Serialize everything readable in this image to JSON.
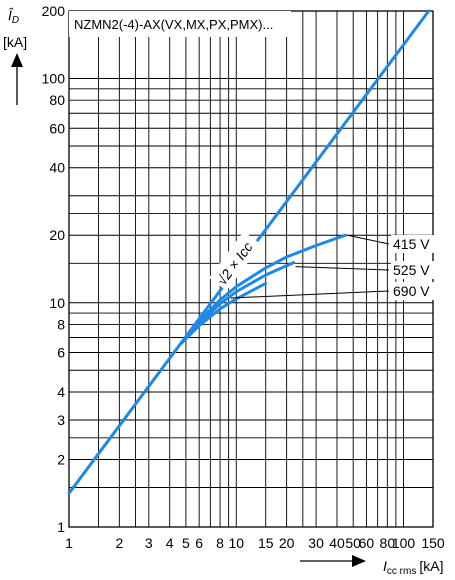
{
  "chart_data": {
    "type": "line",
    "title": "NZMN2(-4)-AX(VX,MX,PX,PMX)...",
    "xlabel": "I",
    "xlabel_sub": "cc rms",
    "xlabel_unit": "[kA]",
    "ylabel": "Î",
    "ylabel_sub": "D",
    "ylabel_unit": "[kA]",
    "x_scale": "log",
    "y_scale": "log",
    "xlim": [
      1,
      150
    ],
    "ylim": [
      1,
      200
    ],
    "grid": true,
    "x_ticks": [
      {
        "value": 1,
        "label": "1"
      },
      {
        "value": 2,
        "label": "2"
      },
      {
        "value": 3,
        "label": "3"
      },
      {
        "value": 4,
        "label": "4"
      },
      {
        "value": 5,
        "label": "5"
      },
      {
        "value": 6,
        "label": "6"
      },
      {
        "value": 8,
        "label": "8"
      },
      {
        "value": 10,
        "label": "10"
      },
      {
        "value": 15,
        "label": "15"
      },
      {
        "value": 20,
        "label": "20"
      },
      {
        "value": 30,
        "label": "30"
      },
      {
        "value": 40,
        "label": "40"
      },
      {
        "value": 50,
        "label": "50"
      },
      {
        "value": 60,
        "label": "60"
      },
      {
        "value": 80,
        "label": "80"
      },
      {
        "value": 100,
        "label": "100"
      },
      {
        "value": 150,
        "label": "150"
      }
    ],
    "x_grid": [
      1,
      1.5,
      2,
      2.5,
      3,
      4,
      5,
      6,
      7,
      8,
      9,
      10,
      15,
      20,
      25,
      30,
      40,
      50,
      60,
      70,
      80,
      90,
      100,
      150
    ],
    "y_ticks": [
      {
        "value": 1,
        "label": "1"
      },
      {
        "value": 2,
        "label": "2"
      },
      {
        "value": 3,
        "label": "3"
      },
      {
        "value": 4,
        "label": "4"
      },
      {
        "value": 6,
        "label": "6"
      },
      {
        "value": 8,
        "label": "8"
      },
      {
        "value": 10,
        "label": "10"
      },
      {
        "value": 20,
        "label": "20"
      },
      {
        "value": 40,
        "label": "40"
      },
      {
        "value": 60,
        "label": "60"
      },
      {
        "value": 80,
        "label": "80"
      },
      {
        "value": 100,
        "label": "100"
      },
      {
        "value": 200,
        "label": "200"
      }
    ],
    "y_grid": [
      1,
      1.5,
      2,
      2.5,
      3,
      4,
      5,
      6,
      7,
      8,
      9,
      10,
      15,
      20,
      25,
      30,
      40,
      50,
      60,
      70,
      80,
      90,
      100,
      200
    ],
    "series": [
      {
        "name": "√2 × Icc",
        "x": [
          1,
          141.4
        ],
        "y": [
          1.414,
          200
        ]
      },
      {
        "name": "415 V",
        "x": [
          4.7,
          6,
          8,
          10,
          15,
          20,
          30,
          45
        ],
        "y": [
          6.6,
          8.3,
          10.3,
          11.8,
          14.3,
          16.0,
          18.0,
          20.0
        ]
      },
      {
        "name": "525 V",
        "x": [
          4.7,
          6,
          8,
          10,
          15,
          22
        ],
        "y": [
          6.6,
          8.1,
          9.9,
          11.2,
          13.3,
          15.1
        ]
      },
      {
        "name": "690 V",
        "x": [
          4.7,
          6,
          8,
          10,
          15
        ],
        "y": [
          6.6,
          7.9,
          9.4,
          10.4,
          12.2
        ]
      }
    ],
    "annotations": [
      {
        "text": "415 V",
        "x": 45,
        "y": 20
      },
      {
        "text": "525 V",
        "x": 22,
        "y": 14.5
      },
      {
        "text": "690 V",
        "x": 9,
        "y": 10.5
      }
    ]
  }
}
